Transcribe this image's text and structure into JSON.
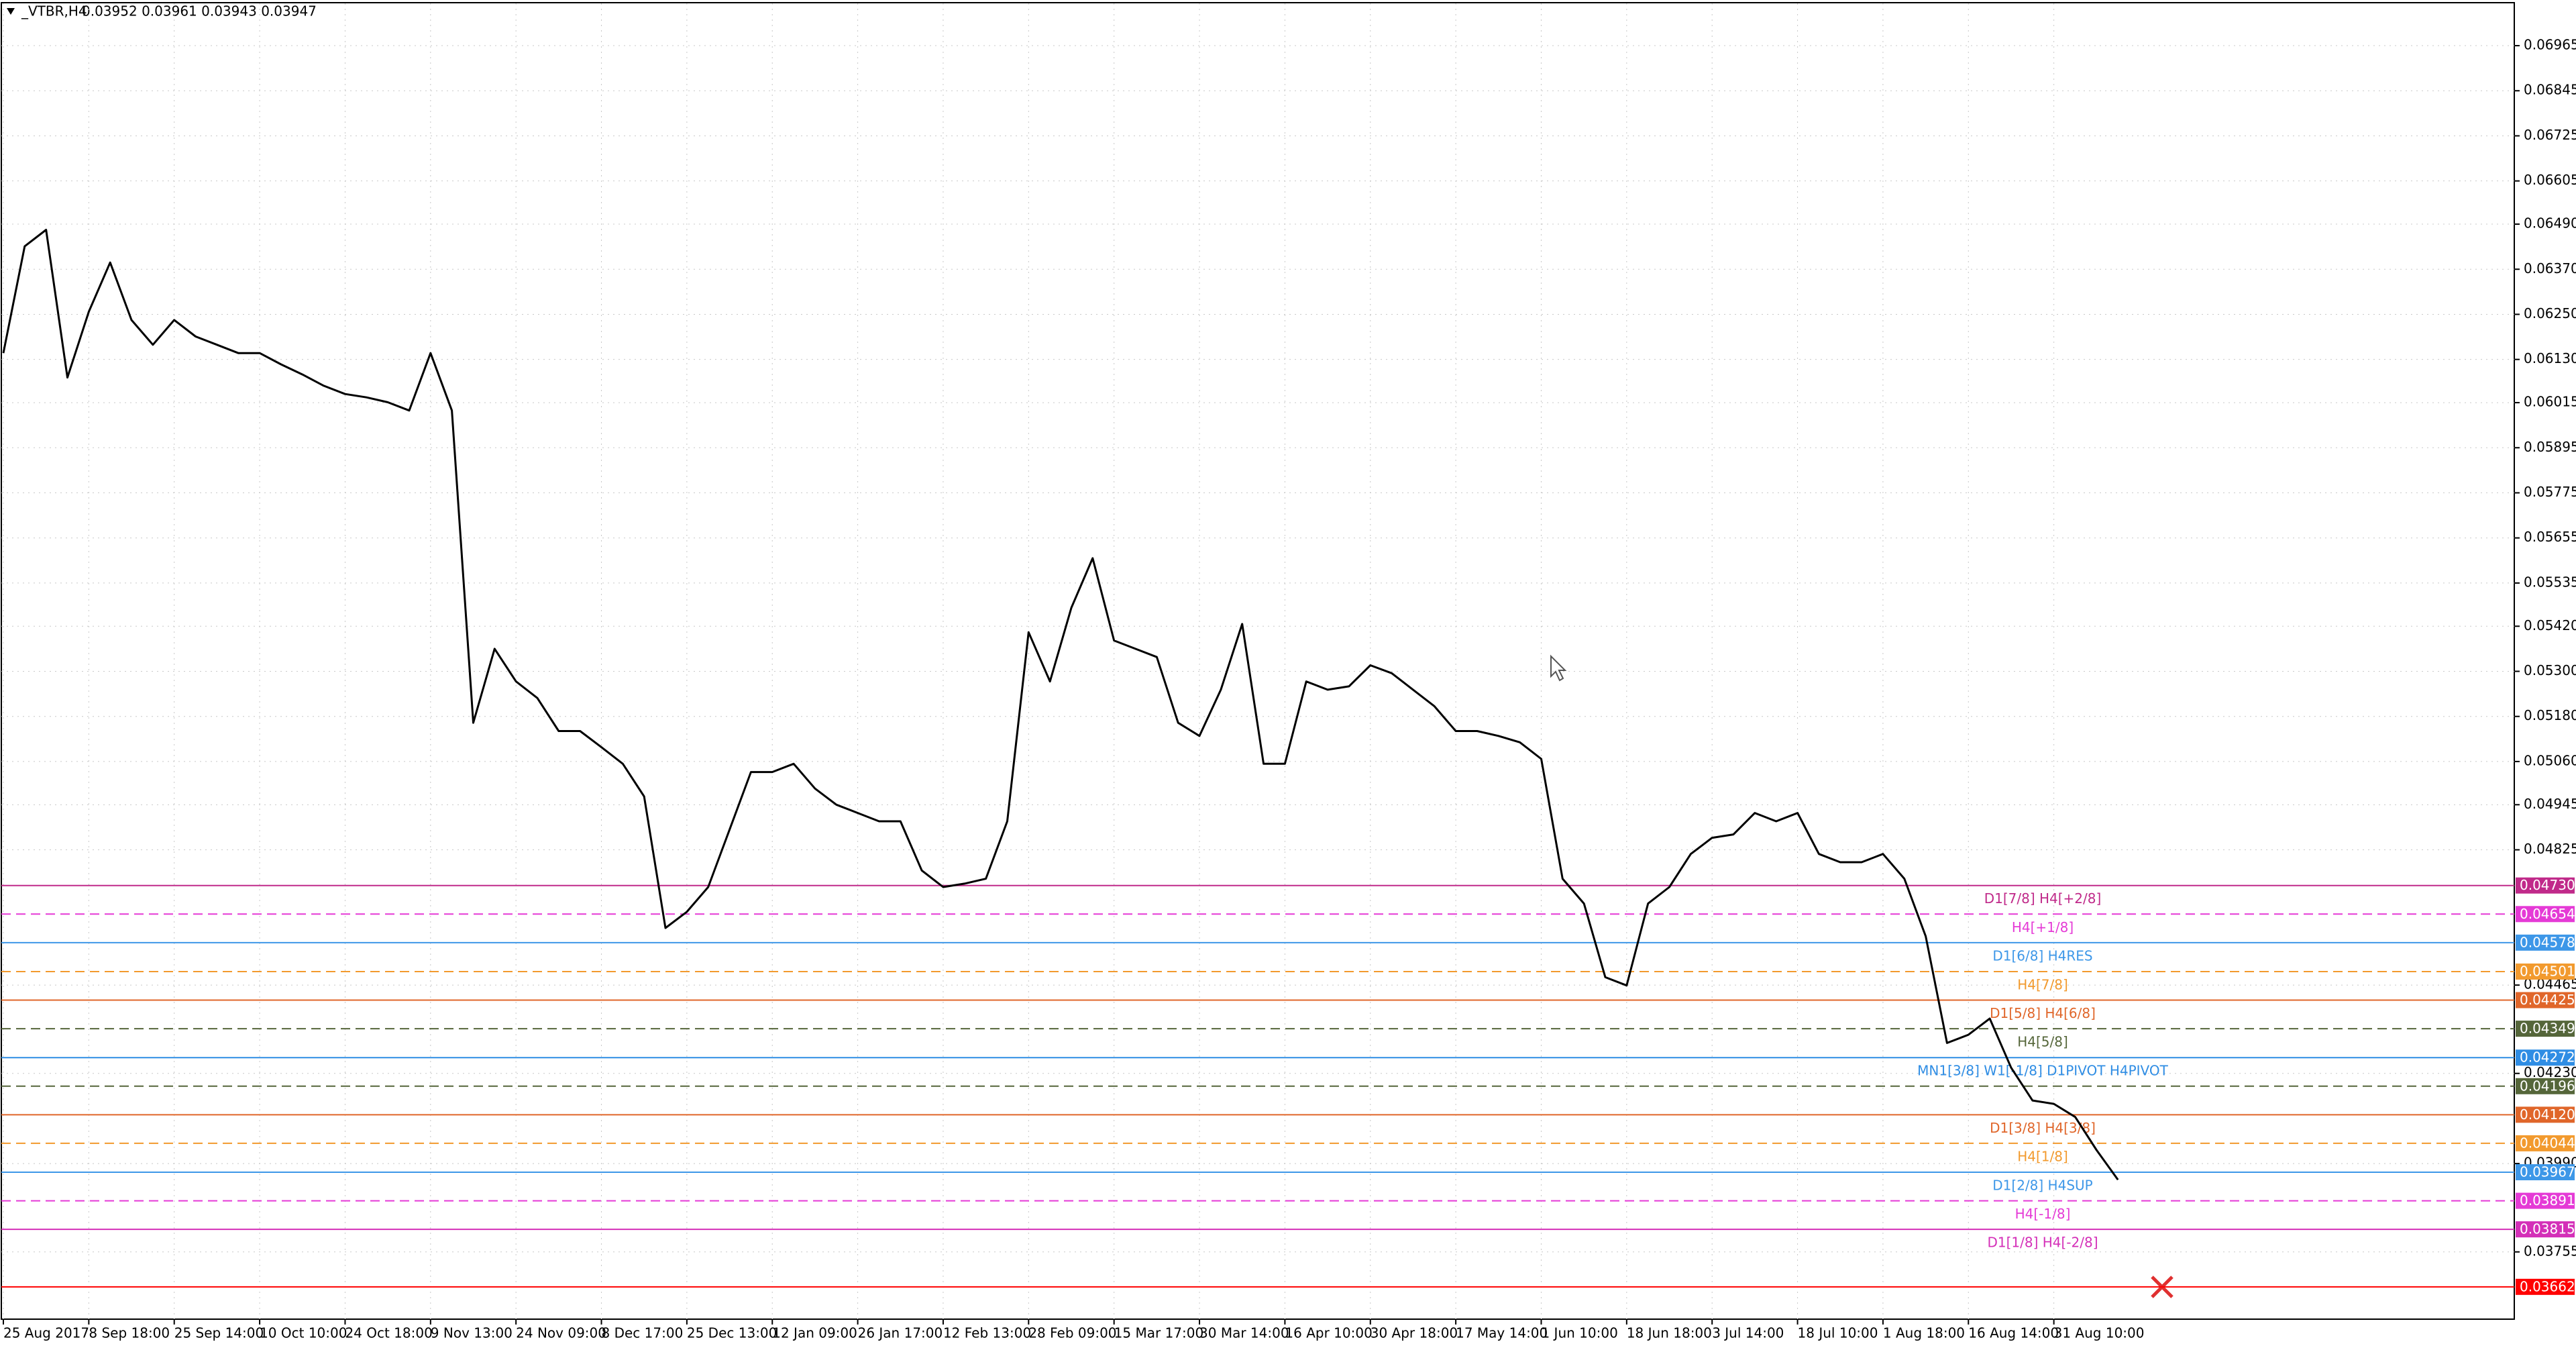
{
  "header": {
    "title": "_VTBR,H4",
    "ohlc": "0.03952 0.03961 0.03943 0.03947"
  },
  "chart_data": {
    "type": "line",
    "color": "#000000",
    "grid": true,
    "categories": [
      "25 Aug 2017",
      null,
      null,
      null,
      "8 Sep 18:00",
      null,
      null,
      null,
      "25 Sep 14:00",
      null,
      null,
      null,
      "10 Oct 10:00",
      null,
      null,
      null,
      "24 Oct 18:00",
      null,
      null,
      null,
      "9 Nov 13:00",
      null,
      null,
      null,
      "24 Nov 09:00",
      null,
      null,
      null,
      "8 Dec 17:00",
      null,
      null,
      null,
      "25 Dec 13:00",
      null,
      null,
      null,
      "12 Jan 09:00",
      null,
      null,
      null,
      "26 Jan 17:00",
      null,
      null,
      null,
      "12 Feb 13:00",
      null,
      null,
      null,
      "28 Feb 09:00",
      null,
      null,
      null,
      "15 Mar 17:00",
      null,
      null,
      null,
      "30 Mar 14:00",
      null,
      null,
      null,
      "16 Apr 10:00",
      null,
      null,
      null,
      "30 Apr 18:00",
      null,
      null,
      null,
      "17 May 14:00",
      null,
      null,
      null,
      "1 Jun 10:00",
      null,
      null,
      null,
      "18 Jun 18:00",
      null,
      null,
      null,
      "3 Jul 14:00",
      null,
      null,
      null,
      "18 Jul 10:00",
      null,
      null,
      null,
      "1 Aug 18:00",
      null,
      null,
      null,
      "16 Aug 14:00",
      null,
      null,
      null,
      "31 Aug 10:00",
      null,
      null,
      null
    ],
    "values": [
      0.06147,
      0.06431,
      0.06475,
      0.06082,
      0.06257,
      0.06388,
      0.06235,
      0.06169,
      0.06235,
      0.06191,
      0.06169,
      0.06147,
      0.06147,
      0.06117,
      0.0609,
      0.0606,
      0.06038,
      0.06029,
      0.06016,
      0.05994,
      0.06147,
      0.05994,
      0.05163,
      0.0536,
      0.05273,
      0.05229,
      0.05141,
      0.05141,
      0.05098,
      0.05054,
      0.04967,
      0.04617,
      0.0466,
      0.04726,
      0.04879,
      0.05032,
      0.05032,
      0.05054,
      0.04988,
      0.04945,
      0.04923,
      0.04901,
      0.04901,
      0.0477,
      0.04726,
      0.04735,
      0.04748,
      0.04901,
      0.05404,
      0.05273,
      0.05469,
      0.05601,
      0.05382,
      0.0536,
      0.05338,
      0.05163,
      0.05128,
      0.05251,
      0.05426,
      0.05054,
      0.05054,
      0.05273,
      0.05251,
      0.0526,
      0.05316,
      0.05295,
      0.05251,
      0.05207,
      0.05141,
      0.05141,
      0.05128,
      0.05111,
      0.05067,
      0.04748,
      0.04682,
      0.04486,
      0.04464,
      0.04682,
      0.04726,
      0.04814,
      0.04857,
      0.04866,
      0.04923,
      0.04901,
      0.04923,
      0.04814,
      0.04792,
      0.04792,
      0.04814,
      0.04748,
      0.04595,
      0.04311,
      0.04333,
      0.04376,
      0.04245,
      0.04158,
      0.04149,
      0.04114,
      0.04026,
      0.03947
    ],
    "ylim": [
      0.03576,
      0.07074
    ],
    "yticks": [
      0.06965,
      0.06845,
      0.06725,
      0.06605,
      {
        "value": 0.0649,
        "label": "0.06490"
      },
      {
        "value": 0.0637,
        "label": "0.06370"
      },
      {
        "value": 0.0625,
        "label": "0.06250"
      },
      {
        "value": 0.0613,
        "label": "0.06130"
      },
      0.06015,
      0.05895,
      0.05775,
      0.05655,
      0.05535,
      {
        "value": 0.0542,
        "label": "0.05420"
      },
      {
        "value": 0.053,
        "label": "0.05300"
      },
      {
        "value": 0.0518,
        "label": "0.05180"
      },
      {
        "value": 0.0506,
        "label": "0.05060"
      },
      0.04945,
      0.04825,
      0.04465,
      {
        "value": 0.0423,
        "label": "0.04230"
      },
      {
        "value": 0.0399,
        "label": "0.03990"
      },
      0.03755
    ],
    "levels": [
      {
        "value": 0.0473,
        "value_label": "0.04730",
        "text": "D1[7/8] H4[+2/8]",
        "color": "#c02a8a",
        "style": "solid"
      },
      {
        "value": 0.04654,
        "text": "H4[+1/8]",
        "color": "#e53ad6",
        "style": "dashed"
      },
      {
        "value": 0.04578,
        "text": "D1[6/8] H4RES",
        "color": "#3d97e8",
        "style": "solid"
      },
      {
        "value": 0.04501,
        "text": "H4[7/8]",
        "color": "#f29a2e",
        "style": "dashed"
      },
      {
        "value": 0.04425,
        "text": "D1[5/8] H4[6/8]",
        "color": "#e0662a",
        "style": "solid"
      },
      {
        "value": 0.04349,
        "text": "H4[5/8]",
        "color": "#55663a",
        "style": "dashed"
      },
      {
        "value": 0.04272,
        "text": "MN1[3/8] W1[-1/8] D1PIVOT H4PIVOT",
        "color": "#2f8de4",
        "style": "solid"
      },
      {
        "value": 0.04196,
        "color": "#55663a",
        "style": "dashed"
      },
      {
        "value": 0.0412,
        "value_label": "0.04120",
        "text": "D1[3/8] H4[3/8]",
        "color": "#e0662a",
        "style": "solid"
      },
      {
        "value": 0.04044,
        "text": "H4[1/8]",
        "color": "#f29a2e",
        "style": "dashed"
      },
      {
        "value": 0.03967,
        "text": "D1[2/8] H4SUP",
        "color": "#3d97e8",
        "style": "solid"
      },
      {
        "value": 0.03891,
        "text": "H4[-1/8]",
        "color": "#e53ad6",
        "style": "dashed"
      },
      {
        "value": 0.03815,
        "text": "D1[1/8] H4[-2/8]",
        "color": "#d42fb8",
        "style": "solid"
      },
      {
        "value": 0.03662,
        "color": "#ff0000",
        "style": "solid"
      }
    ]
  }
}
